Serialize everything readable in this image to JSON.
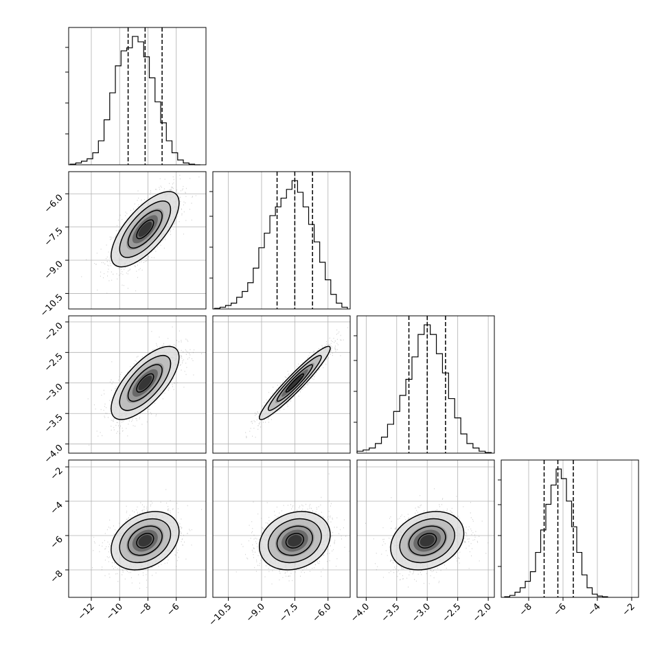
{
  "chart_data": {
    "type": "corner",
    "title": "",
    "colors": {
      "line": "#000000",
      "grid": "#b0b0b0",
      "points": "#808080",
      "frame": "#000000"
    },
    "grid": true,
    "parameters": [
      {
        "ticks": [
          -12,
          -10,
          -8,
          -6
        ],
        "tick_labels": [
          "−12",
          "−10",
          "−8",
          "−6"
        ],
        "range": [
          -13.6,
          -3.9
        ],
        "quantiles": [
          -9.4,
          -8.2,
          -7.0
        ],
        "hist_x": [
          -13.3,
          -12.9,
          -12.5,
          -12.1,
          -11.7,
          -11.3,
          -10.9,
          -10.5,
          -10.1,
          -9.7,
          -9.3,
          -8.9,
          -8.5,
          -8.1,
          -7.7,
          -7.3,
          -6.9,
          -6.5,
          -6.1,
          -5.7,
          -5.3,
          -4.9,
          -4.5
        ],
        "hist_y": [
          1,
          3,
          6,
          10,
          20,
          40,
          75,
          120,
          165,
          190,
          195,
          214,
          205,
          180,
          145,
          105,
          70,
          40,
          20,
          8,
          3,
          1,
          0
        ]
      },
      {
        "ticks": [
          -10.5,
          -9.0,
          -7.5,
          -6.0
        ],
        "tick_labels": [
          "−10.5",
          "−9.0",
          "−7.5",
          "−6.0"
        ],
        "range": [
          -11.2,
          -5.0
        ],
        "quantiles": [
          -8.3,
          -7.5,
          -6.7
        ],
        "hist_x": [
          -11.0,
          -10.75,
          -10.5,
          -10.25,
          -10.0,
          -9.75,
          -9.5,
          -9.25,
          -9.0,
          -8.75,
          -8.5,
          -8.25,
          -8.0,
          -7.75,
          -7.5,
          -7.25,
          -7.0,
          -6.75,
          -6.5,
          -6.25,
          -6.0,
          -5.75,
          -5.5,
          -5.25
        ],
        "hist_y": [
          1,
          3,
          6,
          10,
          20,
          30,
          45,
          70,
          105,
          130,
          160,
          175,
          190,
          205,
          220,
          200,
          175,
          145,
          115,
          80,
          50,
          25,
          10,
          3
        ]
      },
      {
        "ticks": [
          -4.0,
          -3.5,
          -3.0,
          -2.5,
          -2.0
        ],
        "tick_labels": [
          "−4.0",
          "−3.5",
          "−3.0",
          "−2.5",
          "−2.0"
        ],
        "range": [
          -4.15,
          -1.9
        ],
        "quantiles": [
          -3.3,
          -3.0,
          -2.7
        ],
        "hist_x": [
          -4.1,
          -4.0,
          -3.9,
          -3.8,
          -3.7,
          -3.6,
          -3.5,
          -3.4,
          -3.3,
          -3.2,
          -3.1,
          -3.0,
          -2.9,
          -2.8,
          -2.7,
          -2.6,
          -2.5,
          -2.4,
          -2.3,
          -2.2,
          -2.1,
          -2.0
        ],
        "hist_y": [
          3,
          5,
          8,
          15,
          25,
          45,
          65,
          90,
          115,
          150,
          185,
          200,
          185,
          155,
          125,
          85,
          55,
          30,
          15,
          8,
          3,
          1
        ]
      },
      {
        "ticks": [
          -8,
          -6,
          -4,
          -2
        ],
        "tick_labels": [
          "−8",
          "−6",
          "−4",
          "−2"
        ],
        "range": [
          -9.6,
          -1.6
        ],
        "quantiles": [
          -7.1,
          -6.3,
          -5.4
        ],
        "hist_x": [
          -9.25,
          -8.95,
          -8.65,
          -8.35,
          -8.05,
          -7.75,
          -7.45,
          -7.15,
          -6.85,
          -6.55,
          -6.25,
          -5.95,
          -5.65,
          -5.35,
          -5.05,
          -4.75,
          -4.45,
          -4.15,
          -3.85,
          -3.55
        ],
        "hist_y": [
          1,
          3,
          8,
          15,
          25,
          40,
          70,
          105,
          145,
          175,
          200,
          185,
          150,
          110,
          70,
          35,
          15,
          5,
          2,
          1
        ]
      }
    ],
    "pairs": [
      {
        "row": 1,
        "col": 0,
        "center": [
          -8.2,
          -7.6
        ],
        "spread": [
          1.2,
          0.85
        ],
        "rho": 0.7
      },
      {
        "row": 2,
        "col": 0,
        "center": [
          -8.2,
          -3.0
        ],
        "spread": [
          1.2,
          0.3
        ],
        "rho": 0.7
      },
      {
        "row": 2,
        "col": 1,
        "center": [
          -7.5,
          -3.0
        ],
        "spread": [
          0.8,
          0.3
        ],
        "rho": 0.95
      },
      {
        "row": 3,
        "col": 0,
        "center": [
          -8.2,
          -6.3
        ],
        "spread": [
          1.2,
          0.85
        ],
        "rho": 0.3
      },
      {
        "row": 3,
        "col": 1,
        "center": [
          -7.5,
          -6.3
        ],
        "spread": [
          0.8,
          0.85
        ],
        "rho": 0.2
      },
      {
        "row": 3,
        "col": 2,
        "center": [
          -3.0,
          -6.3
        ],
        "spread": [
          0.3,
          0.85
        ],
        "rho": 0.25
      }
    ]
  }
}
